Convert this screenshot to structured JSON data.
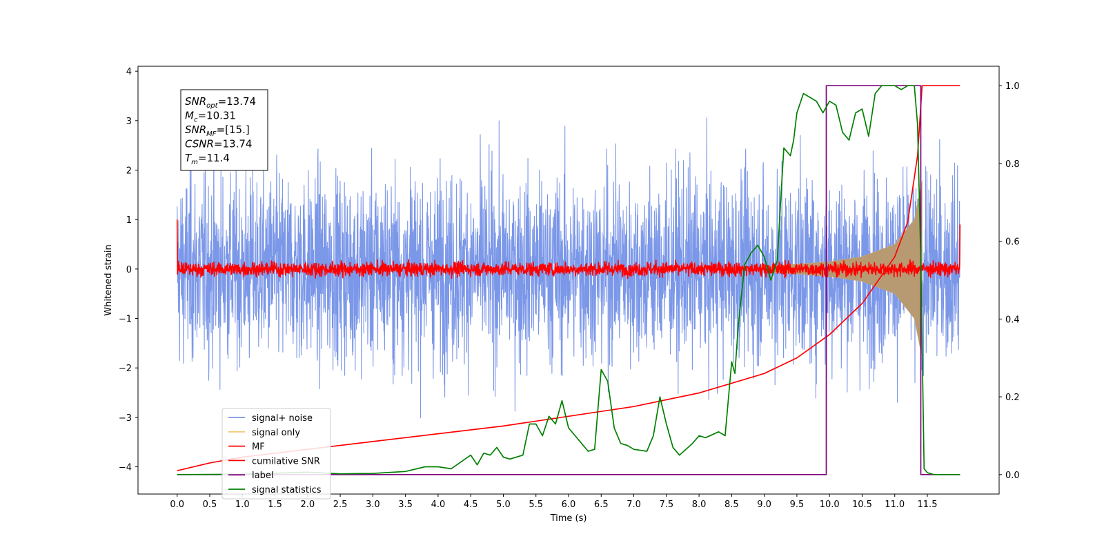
{
  "chart_data": {
    "type": "line",
    "xlabel": "Time (s)",
    "ylabel": "Whitened strain",
    "xlim": [
      -0.6,
      12.6
    ],
    "ylim": [
      -4.55,
      4.1
    ],
    "y2lim": [
      -0.05,
      1.05
    ],
    "xticks": [
      "0.0",
      "0.5",
      "1.0",
      "1.5",
      "2.0",
      "2.5",
      "3.0",
      "3.5",
      "4.0",
      "4.5",
      "5.0",
      "5.5",
      "6.0",
      "6.5",
      "7.0",
      "7.5",
      "8.0",
      "8.5",
      "9.0",
      "9.5",
      "10.0",
      "10.5",
      "11.0",
      "11.5"
    ],
    "yticks": [
      "4",
      "3",
      "2",
      "1",
      "0",
      "−1",
      "−2",
      "−3",
      "−4"
    ],
    "y2ticks": [
      "0.0",
      "0.2",
      "0.4",
      "0.6",
      "0.8",
      "1.0"
    ],
    "annotation": {
      "lines": [
        {
          "sym": "SNR",
          "sub": "opt",
          "val": "=13.74"
        },
        {
          "sym": "M",
          "sub": "c",
          "val": "=10.31"
        },
        {
          "sym": "SNR",
          "sub": "MF",
          "val": "=[15.]"
        },
        {
          "sym": "CSNR",
          "sub": "",
          "val": "=13.74"
        },
        {
          "sym": "T",
          "sub": "m",
          "val": "=11.4"
        }
      ]
    },
    "legend": {
      "placement": "lower-left",
      "entries": [
        {
          "label": "signal+ noise",
          "color": "#7895e8"
        },
        {
          "label": "signal only",
          "color": "#f5c878"
        },
        {
          "label": "MF",
          "color": "#ff0000"
        },
        {
          "label": "cumilative SNR",
          "color": "#ff0000"
        },
        {
          "label": "label",
          "color": "#800080"
        },
        {
          "label": "signal statistics",
          "color": "#008000"
        }
      ]
    },
    "series": [
      {
        "name": "signal+ noise",
        "axis": "left",
        "color": "#7895e8",
        "kind": "noise",
        "x_range": [
          0,
          12.0
        ],
        "amplitude_range": [
          -3.5,
          3.2
        ]
      },
      {
        "name": "signal only",
        "axis": "left",
        "color": "#f5c878",
        "kind": "chirp",
        "x_range": [
          9.0,
          11.42
        ],
        "envelope": [
          [
            9.0,
            0.05
          ],
          [
            10.0,
            0.15
          ],
          [
            10.5,
            0.25
          ],
          [
            11.0,
            0.5
          ],
          [
            11.3,
            1.0
          ],
          [
            11.42,
            1.8
          ]
        ]
      },
      {
        "name": "MF",
        "axis": "left",
        "color": "#ff0000",
        "kind": "noise",
        "x_range": [
          0,
          12.0
        ],
        "amplitude_range": [
          -0.2,
          0.2
        ],
        "edge_values": [
          1.0,
          0.9
        ]
      },
      {
        "name": "cumilative SNR",
        "axis": "right",
        "color": "#ff0000",
        "x": [
          0,
          0.5,
          1.0,
          2.0,
          3.0,
          4.0,
          5.0,
          6.0,
          7.0,
          8.0,
          8.5,
          9.0,
          9.5,
          10.0,
          10.5,
          11.0,
          11.2,
          11.35,
          11.42,
          12.0
        ],
        "y": [
          0.01,
          0.03,
          0.045,
          0.065,
          0.085,
          0.105,
          0.125,
          0.15,
          0.175,
          0.21,
          0.235,
          0.26,
          0.3,
          0.36,
          0.44,
          0.56,
          0.65,
          0.82,
          1.0,
          1.0
        ]
      },
      {
        "name": "label",
        "axis": "right",
        "color": "#800080",
        "x": [
          0,
          9.95,
          9.95,
          11.4,
          11.4,
          12.0
        ],
        "y": [
          0,
          0,
          1,
          1,
          0,
          0
        ]
      },
      {
        "name": "signal statistics",
        "axis": "right",
        "color": "#008000",
        "x": [
          0,
          1.0,
          2.0,
          2.5,
          3.0,
          3.5,
          3.8,
          4.0,
          4.2,
          4.5,
          4.6,
          4.7,
          4.8,
          4.9,
          5.0,
          5.1,
          5.2,
          5.3,
          5.4,
          5.5,
          5.6,
          5.7,
          5.8,
          5.9,
          6.0,
          6.1,
          6.3,
          6.4,
          6.5,
          6.6,
          6.7,
          6.8,
          6.9,
          7.0,
          7.2,
          7.3,
          7.4,
          7.5,
          7.6,
          7.7,
          7.9,
          8.0,
          8.1,
          8.3,
          8.4,
          8.5,
          8.55,
          8.6,
          8.7,
          8.8,
          8.9,
          9.0,
          9.1,
          9.2,
          9.25,
          9.3,
          9.4,
          9.45,
          9.5,
          9.6,
          9.7,
          9.8,
          9.9,
          10.0,
          10.1,
          10.2,
          10.3,
          10.4,
          10.5,
          10.6,
          10.7,
          10.8,
          10.9,
          11.0,
          11.1,
          11.2,
          11.3,
          11.35,
          11.4,
          11.45,
          11.5,
          11.6,
          12.0
        ],
        "y": [
          0.0,
          0.001,
          0.006,
          0.002,
          0.003,
          0.008,
          0.02,
          0.02,
          0.015,
          0.05,
          0.025,
          0.055,
          0.05,
          0.07,
          0.045,
          0.04,
          0.045,
          0.05,
          0.13,
          0.13,
          0.1,
          0.15,
          0.13,
          0.19,
          0.12,
          0.1,
          0.06,
          0.065,
          0.27,
          0.24,
          0.12,
          0.08,
          0.075,
          0.065,
          0.06,
          0.1,
          0.2,
          0.13,
          0.07,
          0.05,
          0.08,
          0.1,
          0.095,
          0.11,
          0.1,
          0.29,
          0.26,
          0.38,
          0.54,
          0.57,
          0.59,
          0.56,
          0.5,
          0.55,
          0.7,
          0.84,
          0.82,
          0.86,
          0.93,
          0.98,
          0.97,
          0.96,
          0.93,
          0.96,
          0.95,
          0.88,
          0.86,
          0.93,
          0.94,
          0.87,
          0.98,
          1.0,
          1.0,
          1.0,
          0.99,
          1.0,
          1.0,
          0.9,
          0.55,
          0.015,
          0.005,
          0.0,
          0.0
        ]
      }
    ]
  }
}
